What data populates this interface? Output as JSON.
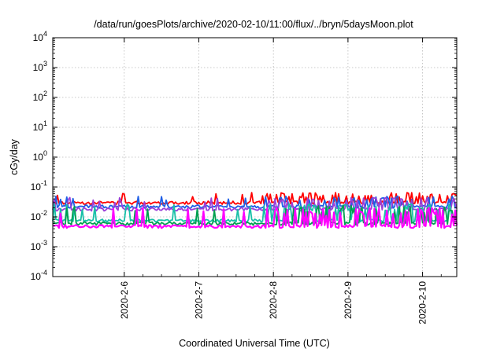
{
  "chart_data": {
    "type": "line",
    "title": "/data/run/goesPlots/archive/2020-02-10/11:00/flux/../bryn/5daysMoon.plot",
    "xlabel": "Coordinated Universal Time (UTC)",
    "ylabel": "cGy/day",
    "y_scale": "log",
    "ylim": [
      0.0001,
      10000
    ],
    "y_ticks": [
      {
        "base": "10",
        "exp": "-4",
        "value": 0.0001
      },
      {
        "base": "10",
        "exp": "-3",
        "value": 0.001
      },
      {
        "base": "10",
        "exp": "-2",
        "value": 0.01
      },
      {
        "base": "10",
        "exp": "-1",
        "value": 0.1
      },
      {
        "base": "10",
        "exp": "0",
        "value": 1
      },
      {
        "base": "10",
        "exp": "1",
        "value": 10
      },
      {
        "base": "10",
        "exp": "2",
        "value": 100
      },
      {
        "base": "10",
        "exp": "3",
        "value": 1000
      },
      {
        "base": "10",
        "exp": "4",
        "value": 10000
      }
    ],
    "xlim": [
      "2020-02-05T01:00",
      "2020-02-10T11:00"
    ],
    "x_ticks": [
      "2020-2-6",
      "2020-2-7",
      "2020-2-8",
      "2020-2-9",
      "2020-2-10"
    ],
    "grid": true,
    "series": [
      {
        "color": "#ff0000",
        "base": 0.03,
        "spike": 0.065
      },
      {
        "color": "#1f5fe6",
        "base": 0.022,
        "spike": 0.05
      },
      {
        "color": "#9b40d8",
        "base": 0.018,
        "spike": 0.045
      },
      {
        "color": "#19c0a8",
        "base": 0.0075,
        "spike": 0.028
      },
      {
        "color": "#00a050",
        "base": 0.006,
        "spike": 0.024
      },
      {
        "color": "#ff00ff",
        "base": 0.0048,
        "spike": 0.02
      }
    ]
  }
}
